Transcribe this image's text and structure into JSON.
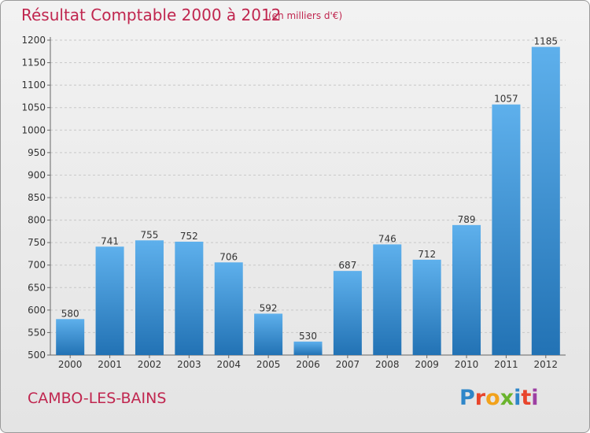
{
  "chart_data": {
    "type": "bar",
    "title": "Résultat Comptable 2000 à 2012",
    "subtitle": "(en milliers d'€)",
    "categories": [
      "2000",
      "2001",
      "2002",
      "2003",
      "2004",
      "2005",
      "2006",
      "2007",
      "2008",
      "2009",
      "2010",
      "2011",
      "2012"
    ],
    "values": [
      580,
      741,
      755,
      752,
      706,
      592,
      530,
      687,
      746,
      712,
      789,
      1057,
      1185
    ],
    "xlabel": "",
    "ylabel": "",
    "ylim": [
      500,
      1200
    ],
    "yticks": [
      500,
      550,
      600,
      650,
      700,
      750,
      800,
      850,
      900,
      950,
      1000,
      1050,
      1100,
      1150,
      1200
    ],
    "grid": true,
    "bar_color": "#3d8fd2"
  },
  "footer": {
    "location": "CAMBO-LES-BAINS",
    "brand": "Proxiti"
  },
  "brand_colors": [
    "#2e86c9",
    "#e8452c",
    "#f2a21b",
    "#6ab42d",
    "#2e86c9",
    "#e8452c",
    "#9d3fa3"
  ]
}
